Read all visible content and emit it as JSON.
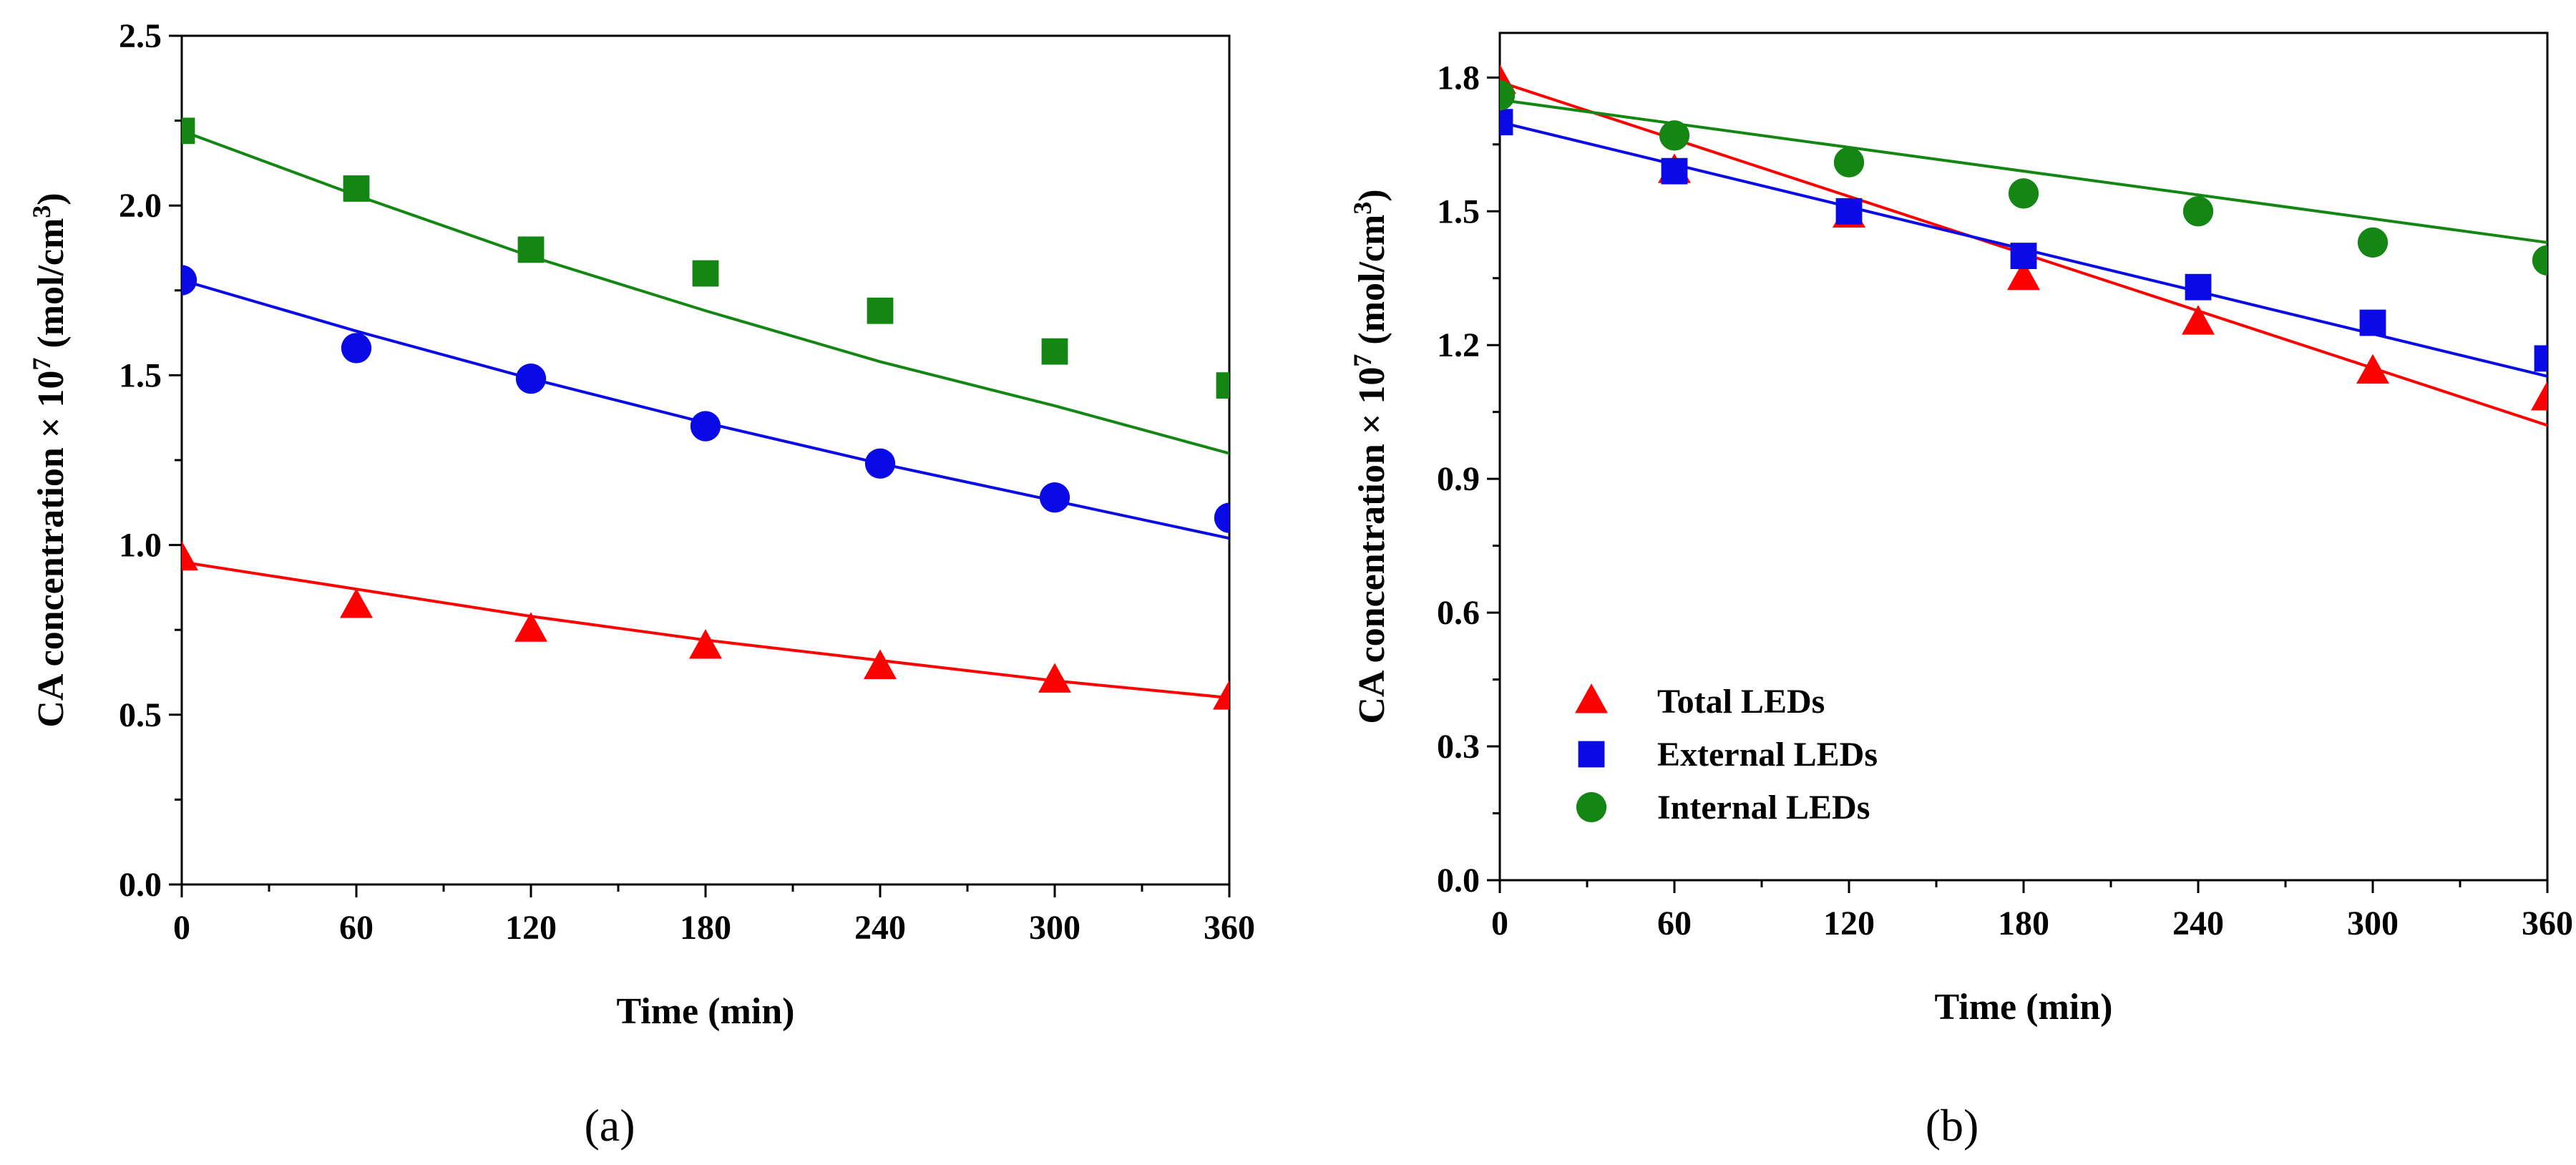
{
  "chart_data": [
    {
      "type": "scatter",
      "panel_label": "(a)",
      "xlabel": "Time (min)",
      "ylabel_prefix": "CA concentration × 10",
      "ylabel_exp": "7",
      "ylabel_unit_open": " (mol/cm",
      "ylabel_unit_exp": "3",
      "ylabel_unit_close": ")",
      "xlim": [
        0,
        360
      ],
      "ylim": [
        0,
        2.5
      ],
      "xticks": [
        0,
        60,
        120,
        180,
        240,
        300,
        360
      ],
      "xtick_labels": [
        "0",
        "60",
        "120",
        "180",
        "240",
        "300",
        "360"
      ],
      "yticks": [
        0,
        0.5,
        1.0,
        1.5,
        2.0,
        2.5
      ],
      "ytick_labels": [
        "0.0",
        "0.5",
        "1.0",
        "1.5",
        "2.0",
        "2.5"
      ],
      "legend": false,
      "series": [
        {
          "name": "Internal LEDs",
          "marker": "square",
          "color": "#138613",
          "x": [
            0,
            60,
            120,
            180,
            240,
            300,
            360
          ],
          "y": [
            2.22,
            2.05,
            1.87,
            1.8,
            1.69,
            1.57,
            1.47
          ],
          "fit_x": [
            0,
            60,
            120,
            180,
            240,
            300,
            360
          ],
          "fit_y": [
            2.22,
            2.03,
            1.85,
            1.69,
            1.54,
            1.41,
            1.27
          ]
        },
        {
          "name": "External LEDs",
          "marker": "circle",
          "color": "#0a0ae6",
          "x": [
            0,
            60,
            120,
            180,
            240,
            300,
            360
          ],
          "y": [
            1.78,
            1.58,
            1.49,
            1.35,
            1.24,
            1.14,
            1.08
          ],
          "fit_x": [
            0,
            60,
            120,
            180,
            240,
            300,
            360
          ],
          "fit_y": [
            1.78,
            1.63,
            1.49,
            1.36,
            1.24,
            1.13,
            1.02
          ]
        },
        {
          "name": "Total LEDs",
          "marker": "triangle",
          "color": "#ff0000",
          "x": [
            0,
            60,
            120,
            180,
            240,
            300,
            360
          ],
          "y": [
            0.96,
            0.82,
            0.75,
            0.7,
            0.64,
            0.6,
            0.55
          ],
          "fit_x": [
            0,
            60,
            120,
            180,
            240,
            300,
            360
          ],
          "fit_y": [
            0.95,
            0.87,
            0.79,
            0.72,
            0.66,
            0.6,
            0.55
          ]
        }
      ]
    },
    {
      "type": "scatter",
      "panel_label": "(b)",
      "xlabel": "Time (min)",
      "ylabel_prefix": "CA concentration × 10",
      "ylabel_exp": "7",
      "ylabel_unit_open": " (mol/cm",
      "ylabel_unit_exp": "3",
      "ylabel_unit_close": ")",
      "xlim": [
        0,
        360
      ],
      "ylim": [
        0,
        1.9
      ],
      "xticks": [
        0,
        60,
        120,
        180,
        240,
        300,
        360
      ],
      "xtick_labels": [
        "0",
        "60",
        "120",
        "180",
        "240",
        "300",
        "360"
      ],
      "yticks": [
        0,
        0.3,
        0.6,
        0.9,
        1.2,
        1.5,
        1.8
      ],
      "ytick_labels": [
        "0.0",
        "0.3",
        "0.6",
        "0.9",
        "1.2",
        "1.5",
        "1.8"
      ],
      "legend": true,
      "legend_position": "lower-left",
      "series": [
        {
          "name": "Total LEDs",
          "marker": "triangle",
          "color": "#ff0000",
          "x": [
            0,
            60,
            120,
            180,
            240,
            300,
            360
          ],
          "y": [
            1.79,
            1.59,
            1.49,
            1.35,
            1.25,
            1.14,
            1.08
          ],
          "fit_x": [
            0,
            360
          ],
          "fit_y": [
            1.79,
            1.02
          ]
        },
        {
          "name": "External LEDs",
          "marker": "square",
          "color": "#0a0ae6",
          "x": [
            0,
            60,
            120,
            180,
            240,
            300,
            360
          ],
          "y": [
            1.7,
            1.59,
            1.5,
            1.4,
            1.33,
            1.25,
            1.17
          ],
          "fit_x": [
            0,
            360
          ],
          "fit_y": [
            1.7,
            1.13
          ]
        },
        {
          "name": "Internal LEDs",
          "marker": "circle",
          "color": "#138613",
          "x": [
            0,
            60,
            120,
            180,
            240,
            300,
            360
          ],
          "y": [
            1.76,
            1.67,
            1.61,
            1.54,
            1.5,
            1.43,
            1.39
          ],
          "fit_x": [
            0,
            360
          ],
          "fit_y": [
            1.75,
            1.43
          ]
        }
      ]
    }
  ]
}
